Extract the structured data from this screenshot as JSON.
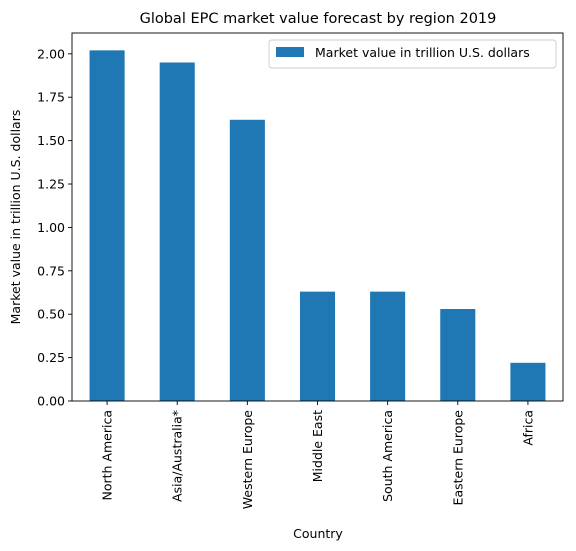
{
  "chart_data": {
    "type": "bar",
    "title": "Global EPC market value forecast by region 2019",
    "xlabel": "Country",
    "ylabel": "Market value in trillion U.S. dollars",
    "categories": [
      "North America",
      "Asia/Australia*",
      "Western Europe",
      "Middle East",
      "South America",
      "Eastern Europe",
      "Africa"
    ],
    "series": [
      {
        "name": "Market value in trillion U.S. dollars",
        "values": [
          2.02,
          1.95,
          1.62,
          0.63,
          0.63,
          0.53,
          0.22
        ],
        "color": "#1f77b4"
      }
    ],
    "ylim": [
      0,
      2.12
    ],
    "yticks": [
      0.0,
      0.25,
      0.5,
      0.75,
      1.0,
      1.25,
      1.5,
      1.75,
      2.0
    ],
    "ytick_labels": [
      "0.00",
      "0.25",
      "0.50",
      "0.75",
      "1.00",
      "1.25",
      "1.50",
      "1.75",
      "2.00"
    ],
    "grid": false,
    "legend_position": "top-right"
  }
}
